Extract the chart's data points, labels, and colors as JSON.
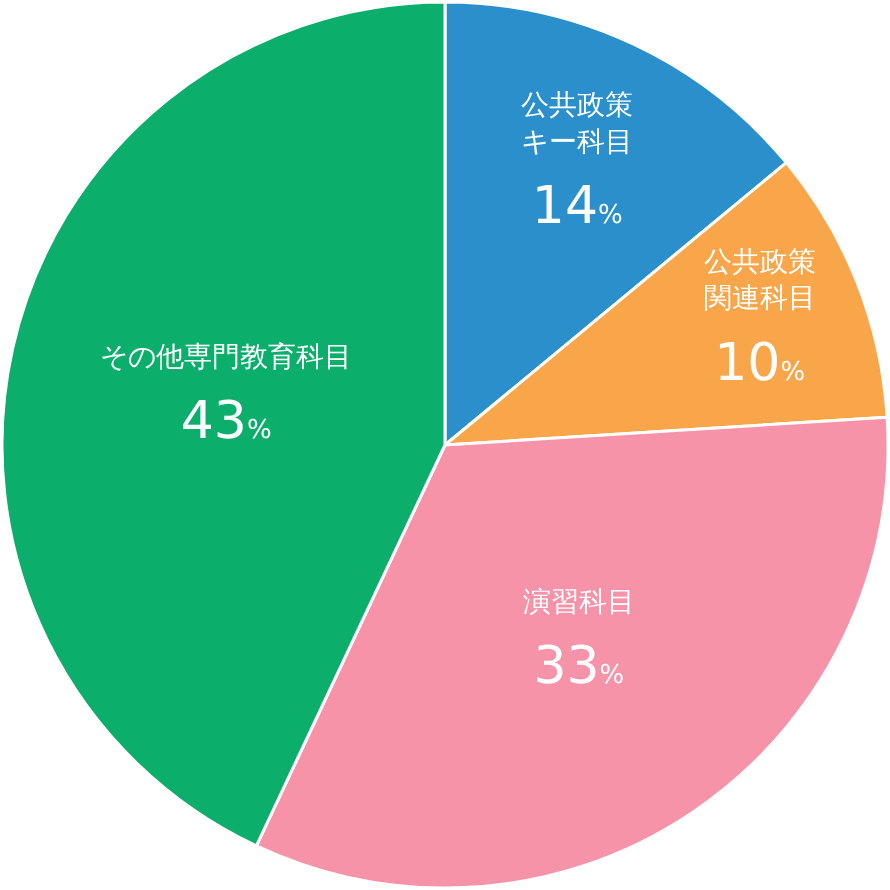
{
  "chart_data": {
    "type": "pie",
    "categories": [
      "公共政策キー科目",
      "公共政策関連科目",
      "演習科目",
      "その他専門教育科目"
    ],
    "values": [
      14,
      10,
      33,
      43
    ],
    "colors": [
      "#2a8fcb",
      "#f9a54a",
      "#f693a8",
      "#0bae6a"
    ],
    "value_labels": [
      "14%",
      "10%",
      "33%",
      "43%"
    ],
    "legend": false
  }
}
